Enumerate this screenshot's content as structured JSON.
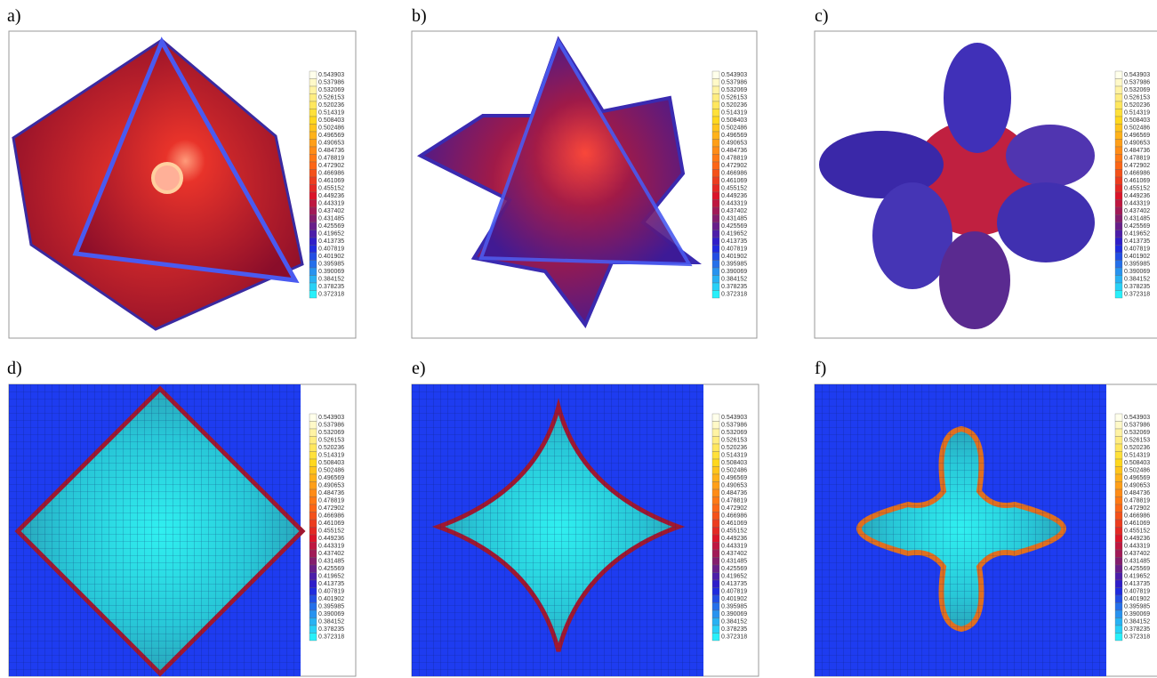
{
  "panels": [
    {
      "label": "a)"
    },
    {
      "label": "b)"
    },
    {
      "label": "c)"
    },
    {
      "label": "d)"
    },
    {
      "label": "e)"
    },
    {
      "label": "f)"
    }
  ],
  "colorbar": {
    "labels": [
      "0.543903",
      "0.537986",
      "0.532069",
      "0.526153",
      "0.520236",
      "0.514319",
      "0.508403",
      "0.502486",
      "0.496569",
      "0.490653",
      "0.484736",
      "0.478819",
      "0.472902",
      "0.466986",
      "0.461069",
      "0.455152",
      "0.449236",
      "0.443319",
      "0.437402",
      "0.431485",
      "0.425569",
      "0.419652",
      "0.413735",
      "0.407819",
      "0.401902",
      "0.395985",
      "0.390069",
      "0.384152",
      "0.378235",
      "0.372318"
    ]
  }
}
